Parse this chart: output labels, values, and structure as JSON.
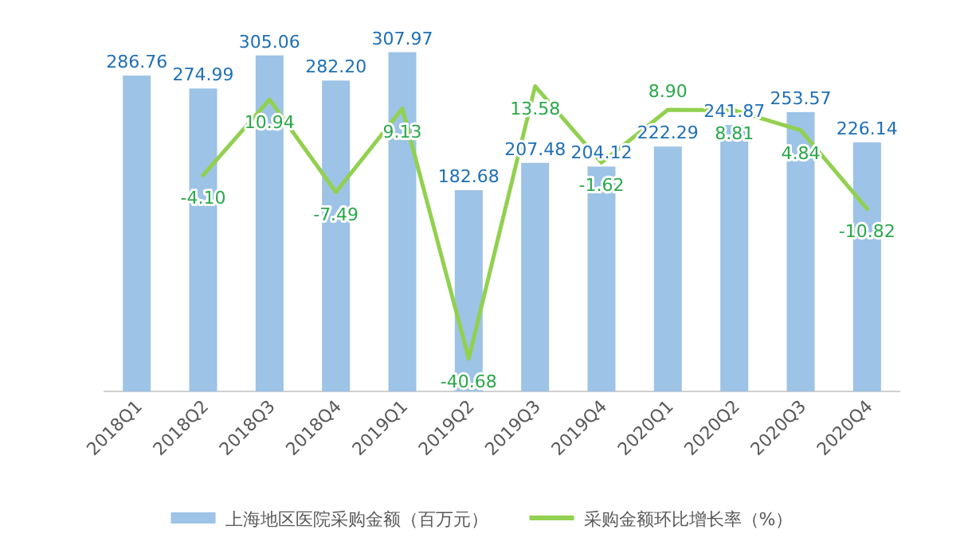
{
  "chart_data": {
    "type": "bar",
    "categories": [
      "2018Q1",
      "2018Q2",
      "2018Q3",
      "2018Q4",
      "2019Q1",
      "2019Q2",
      "2019Q3",
      "2019Q4",
      "2020Q1",
      "2020Q2",
      "2020Q3",
      "2020Q4"
    ],
    "series": [
      {
        "name": "上海地区医院采购金额（百万元）",
        "type": "bar",
        "color": "#9dc3e6",
        "values": [
          286.76,
          274.99,
          305.06,
          282.2,
          307.97,
          182.68,
          207.48,
          204.12,
          222.29,
          241.87,
          253.57,
          226.14
        ],
        "value_labels": [
          "286.76",
          "274.99",
          "305.06",
          "282.20",
          "307.97",
          "182.68",
          "207.48",
          "204.12",
          "222.29",
          "241.87",
          "253.57",
          "226.14"
        ]
      },
      {
        "name": "采购金额环比增长率（%）",
        "type": "line",
        "axis": "y2",
        "color": "#92d050",
        "values": [
          null,
          -4.1,
          10.94,
          -7.49,
          9.13,
          -40.68,
          13.58,
          -1.62,
          8.9,
          8.81,
          4.84,
          -10.82
        ],
        "value_labels": [
          null,
          "-4.10",
          "10.94",
          "-7.49",
          "9.13",
          "-40.68",
          "13.58",
          "-1.62",
          "8.90",
          "8.81",
          "4.84",
          "-10.82"
        ]
      }
    ],
    "legend": "bottom",
    "tick_labels": "x",
    "marker": "none"
  }
}
